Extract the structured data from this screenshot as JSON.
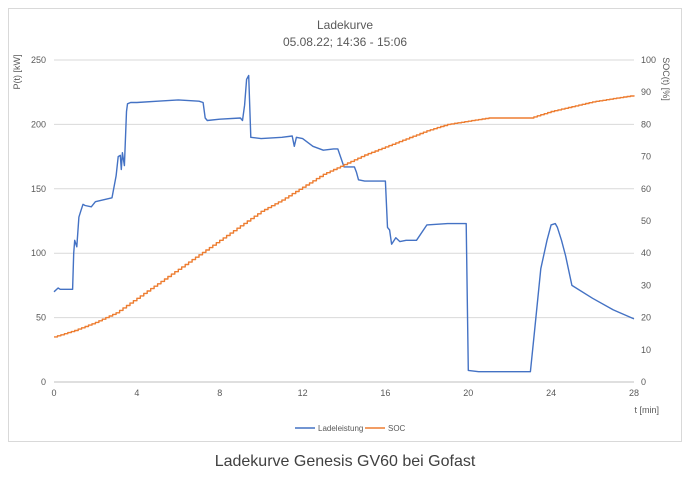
{
  "caption": "Ladekurve Genesis GV60 bei Gofast",
  "chart_data": {
    "type": "line",
    "title": "Ladekurve",
    "subtitle": "05.08.22; 14:36 - 15:06",
    "xlabel": "t [min]",
    "ylabel_left": "P(t) [kW]",
    "ylabel_right": "SOC(t) [%]",
    "xlim": [
      0,
      28
    ],
    "ylim_left": [
      0,
      250
    ],
    "ylim_right": [
      0,
      100
    ],
    "x_ticks": [
      "0",
      "4",
      "8",
      "12",
      "16",
      "20",
      "24",
      "28"
    ],
    "y_left_ticks": [
      "0",
      "50",
      "100",
      "150",
      "200",
      "250"
    ],
    "y_right_ticks": [
      "0",
      "10",
      "20",
      "30",
      "40",
      "50",
      "60",
      "70",
      "80",
      "90",
      "100"
    ],
    "grid": "horizontal",
    "legend_position": "bottom",
    "series": [
      {
        "name": "Ladeleistung",
        "axis": "left",
        "color": "#4472c4",
        "x": [
          0,
          0.2,
          0.3,
          0.9,
          0.95,
          1.0,
          1.1,
          1.2,
          1.3,
          1.4,
          1.5,
          1.8,
          2.0,
          2.8,
          3.0,
          3.1,
          3.2,
          3.25,
          3.3,
          3.4,
          3.5,
          3.55,
          3.7,
          4.0,
          5.0,
          6.0,
          7.0,
          7.2,
          7.3,
          7.4,
          8.0,
          9.0,
          9.1,
          9.2,
          9.3,
          9.4,
          9.5,
          10.0,
          11.0,
          11.5,
          11.6,
          11.7,
          12.0,
          12.5,
          13.0,
          13.5,
          13.7,
          14.0,
          14.5,
          14.6,
          14.7,
          15.0,
          15.5,
          16.0,
          16.1,
          16.2,
          16.3,
          16.5,
          16.7,
          17.0,
          17.2,
          17.5,
          18.0,
          19.0,
          19.8,
          19.9,
          20.0,
          20.5,
          22.0,
          23.0,
          23.2,
          23.5,
          23.8,
          24.0,
          24.2,
          24.3,
          24.5,
          24.7,
          25.0,
          26.0,
          27.0,
          28.0
        ],
        "values": [
          70,
          73,
          72,
          72,
          100,
          110,
          105,
          128,
          133,
          138,
          137,
          136,
          140,
          143,
          160,
          175,
          176,
          165,
          178,
          168,
          210,
          216,
          217,
          217,
          218,
          219,
          218,
          217,
          205,
          203,
          204,
          205,
          203,
          215,
          235,
          238,
          190,
          189,
          190,
          191,
          183,
          190,
          189,
          183,
          180,
          181,
          181,
          167,
          167,
          163,
          157,
          156,
          156,
          156,
          120,
          118,
          107,
          112,
          109,
          110,
          110,
          110,
          122,
          123,
          123,
          123,
          9,
          8,
          8,
          8,
          40,
          88,
          110,
          122,
          123,
          120,
          110,
          98,
          75,
          65,
          56,
          49
        ]
      },
      {
        "name": "SOC",
        "axis": "right",
        "color": "#ed7d31",
        "x": [
          0,
          1,
          2,
          3,
          4,
          5,
          6,
          7,
          8,
          9,
          10,
          11,
          12,
          13,
          14,
          15,
          16,
          17,
          18,
          19,
          20,
          21,
          22,
          23,
          24,
          25,
          26,
          27,
          28
        ],
        "values": [
          14,
          16,
          18.5,
          21.5,
          26,
          30.5,
          35,
          39.5,
          44,
          48.5,
          53,
          56.5,
          60.5,
          64.5,
          67.5,
          70.5,
          73,
          75.5,
          78,
          80,
          81,
          82,
          82,
          82,
          84,
          85.5,
          87,
          88,
          89
        ]
      }
    ]
  }
}
